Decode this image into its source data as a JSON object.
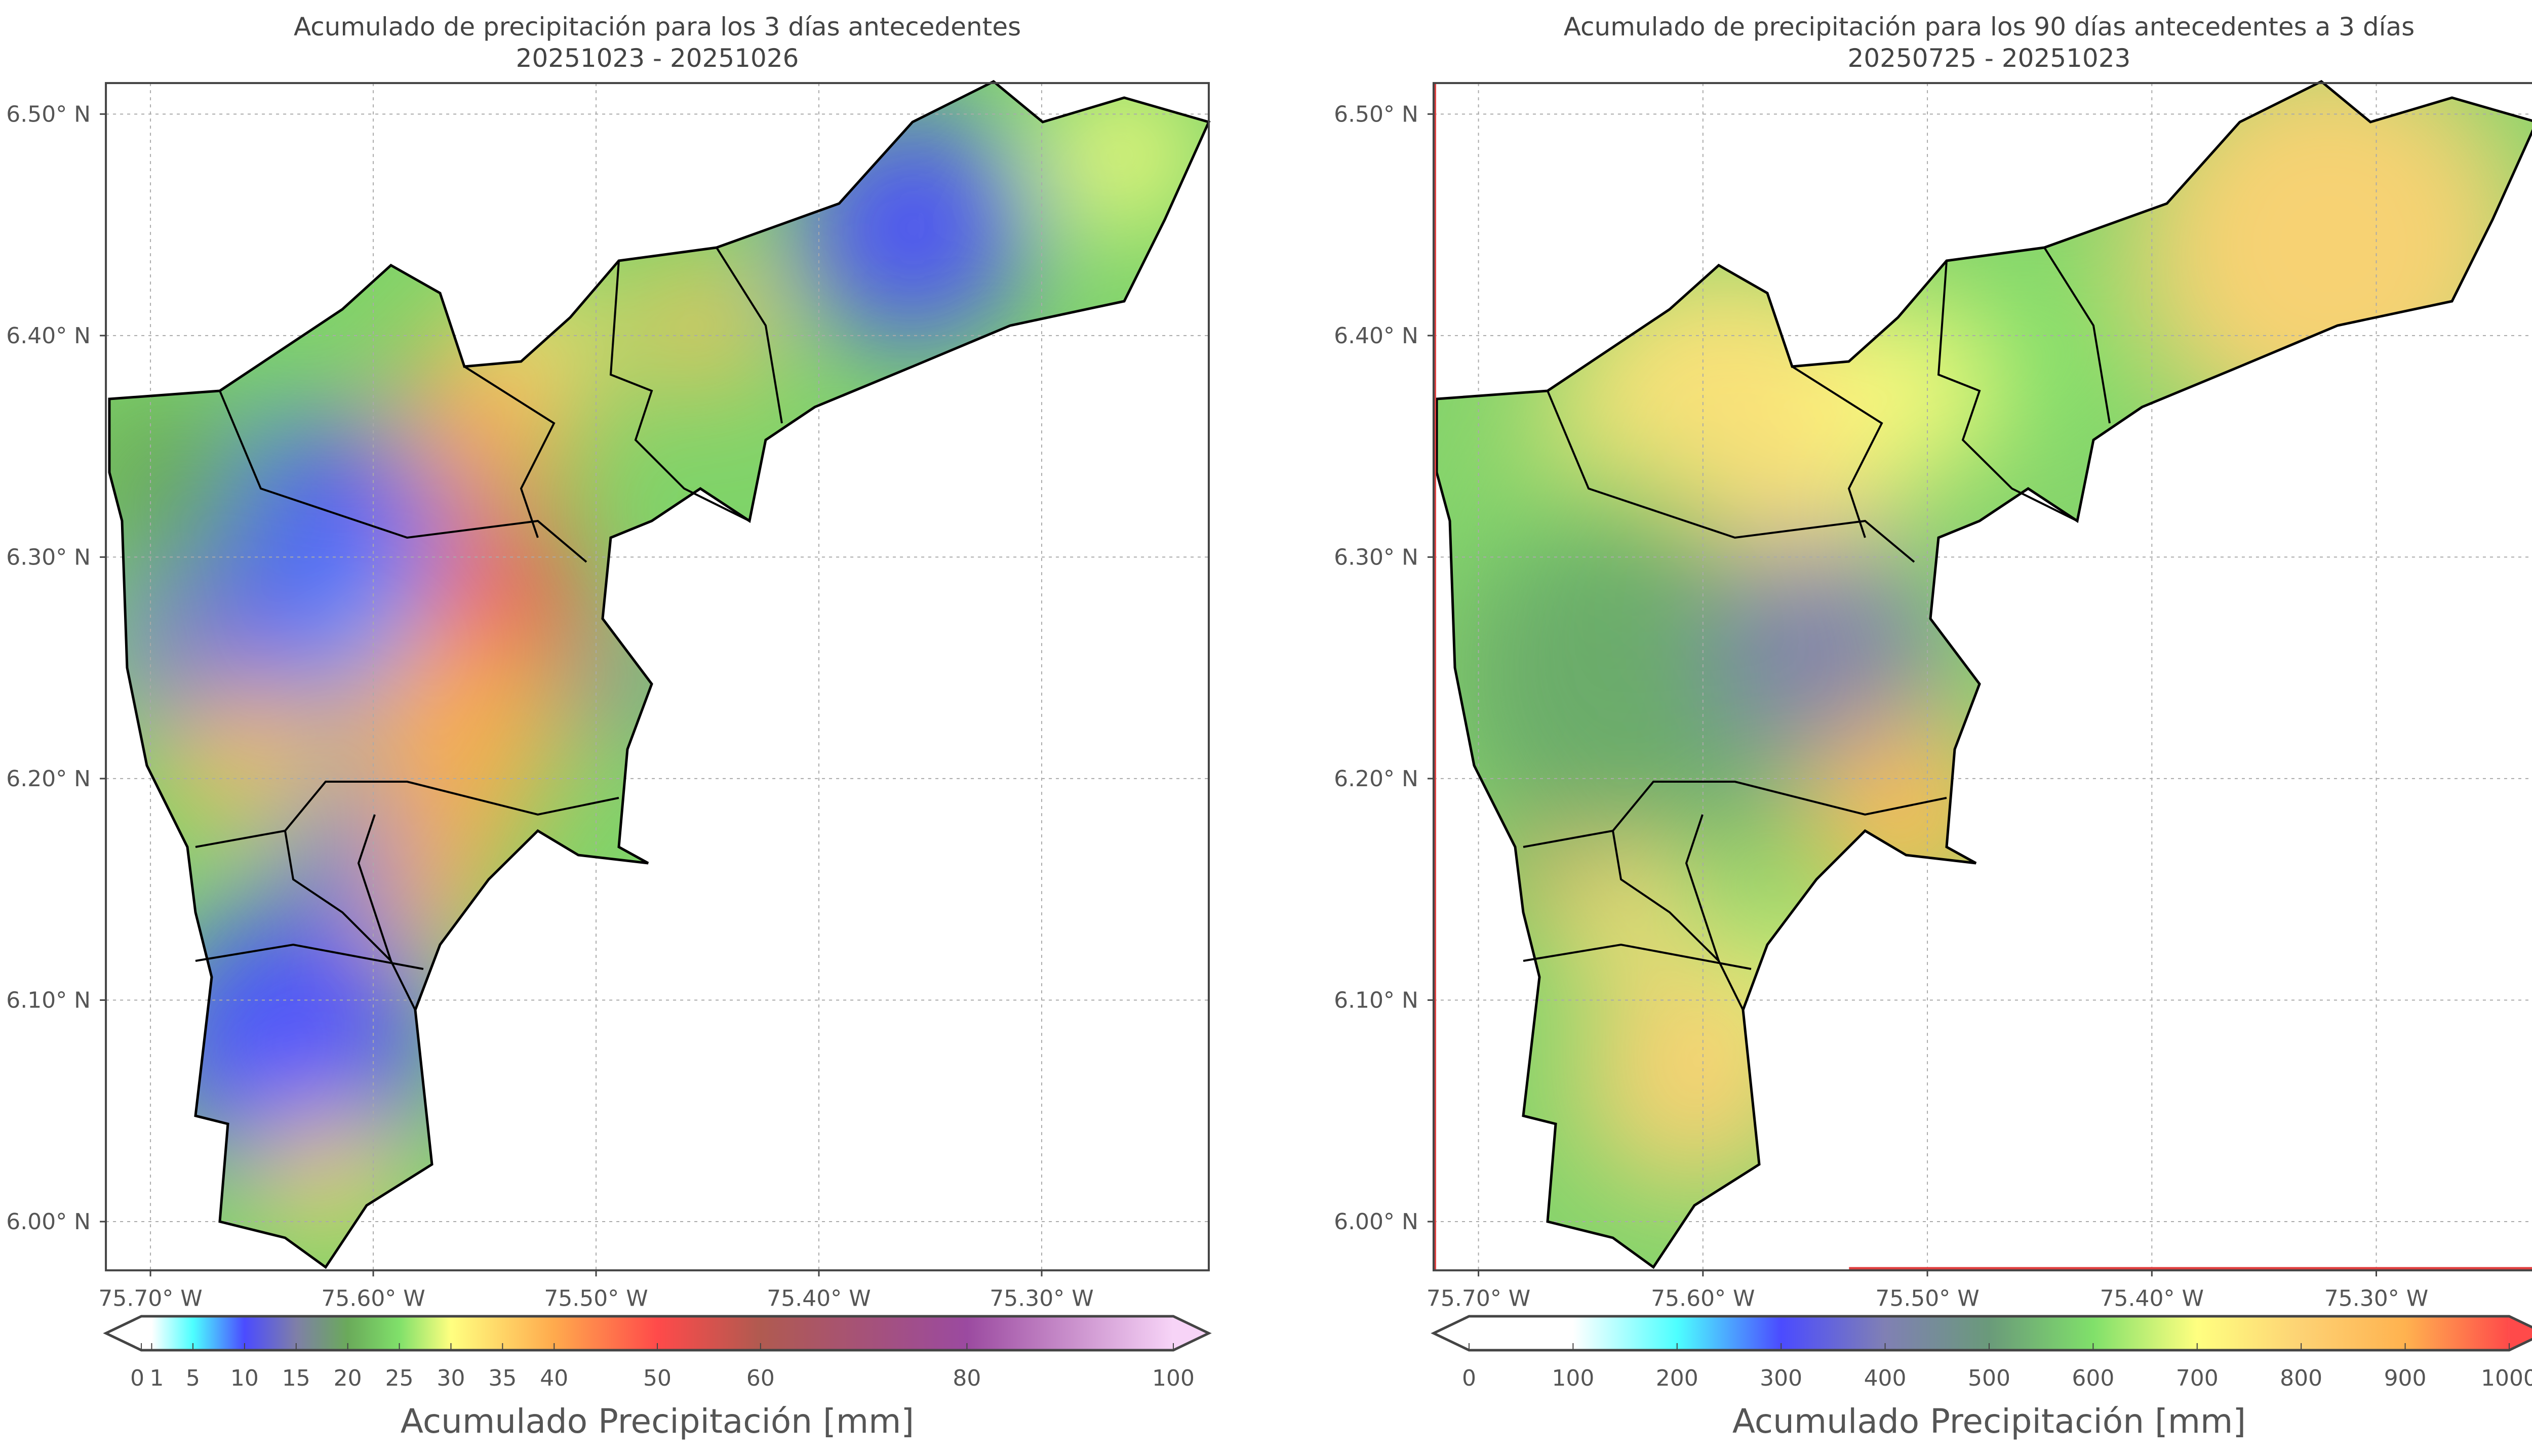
{
  "chart_data": [
    {
      "type": "heatmap",
      "title": "Acumulado de precipitación para los 3 días antecedentes",
      "subtitle": "20251023 - 20251026",
      "x_ticks": [
        "75.70° W",
        "75.60° W",
        "75.50° W",
        "75.40° W",
        "75.30° W"
      ],
      "x_tick_values": [
        -75.7,
        -75.6,
        -75.5,
        -75.4,
        -75.3
      ],
      "y_ticks": [
        "6.50° N",
        "6.40° N",
        "6.30° N",
        "6.20° N",
        "6.10° N",
        "6.00° N"
      ],
      "y_tick_values": [
        6.5,
        6.4,
        6.3,
        6.2,
        6.1,
        6.0
      ],
      "xlim": [
        -75.72,
        -75.225
      ],
      "ylim": [
        5.978,
        6.514
      ],
      "grid": true,
      "colorbar": {
        "label": "Acumulado Precipitación [mm]",
        "ticks": [
          "0",
          "1",
          "5",
          "10",
          "15",
          "20",
          "25",
          "30",
          "35",
          "40",
          "50",
          "60",
          "80",
          "100"
        ],
        "tick_values": [
          0,
          1,
          5,
          10,
          15,
          20,
          25,
          30,
          35,
          40,
          50,
          60,
          80,
          100
        ],
        "range": [
          0,
          100
        ],
        "extend": "both",
        "colors": [
          [
            0,
            "#ffffff"
          ],
          [
            1,
            "#ffffff"
          ],
          [
            5,
            "#4dffff"
          ],
          [
            10,
            "#4b4bff"
          ],
          [
            15,
            "#7f7fa8"
          ],
          [
            20,
            "#6aaa5a"
          ],
          [
            25,
            "#80e06a"
          ],
          [
            30,
            "#ffff80"
          ],
          [
            40,
            "#ffaa4d"
          ],
          [
            50,
            "#ff4a4a"
          ],
          [
            60,
            "#b05a50"
          ],
          [
            80,
            "#9b4aa0"
          ],
          [
            100,
            "#f7d4f7"
          ]
        ]
      }
    },
    {
      "type": "heatmap",
      "title": "Acumulado de precipitación para los 90 días antecedentes a 3 días",
      "subtitle": "20250725 - 20251023",
      "x_ticks": [
        "75.70° W",
        "75.60° W",
        "75.50° W",
        "75.40° W",
        "75.30° W"
      ],
      "x_tick_values": [
        -75.7,
        -75.6,
        -75.5,
        -75.4,
        -75.3
      ],
      "y_ticks": [
        "6.50° N",
        "6.40° N",
        "6.30° N",
        "6.20° N",
        "6.10° N",
        "6.00° N"
      ],
      "y_tick_values": [
        6.5,
        6.4,
        6.3,
        6.2,
        6.1,
        6.0
      ],
      "xlim": [
        -75.72,
        -75.225
      ],
      "ylim": [
        5.978,
        6.514
      ],
      "grid": true,
      "colorbar": {
        "label": "Acumulado Precipitación [mm]",
        "ticks": [
          "0",
          "100",
          "200",
          "300",
          "400",
          "500",
          "600",
          "700",
          "800",
          "900",
          "1000"
        ],
        "tick_values": [
          0,
          100,
          200,
          300,
          400,
          500,
          600,
          700,
          800,
          900,
          1000
        ],
        "range": [
          0,
          1000
        ],
        "extend": "both",
        "colors": [
          [
            0,
            "#ffffff"
          ],
          [
            100,
            "#ffffff"
          ],
          [
            200,
            "#4dffff"
          ],
          [
            300,
            "#4b4bff"
          ],
          [
            400,
            "#8080b4"
          ],
          [
            500,
            "#6a9a7a"
          ],
          [
            600,
            "#80e06a"
          ],
          [
            700,
            "#ffff80"
          ],
          [
            800,
            "#fdd274"
          ],
          [
            900,
            "#ffb24f"
          ],
          [
            1000,
            "#ff4a4a"
          ]
        ]
      }
    }
  ]
}
